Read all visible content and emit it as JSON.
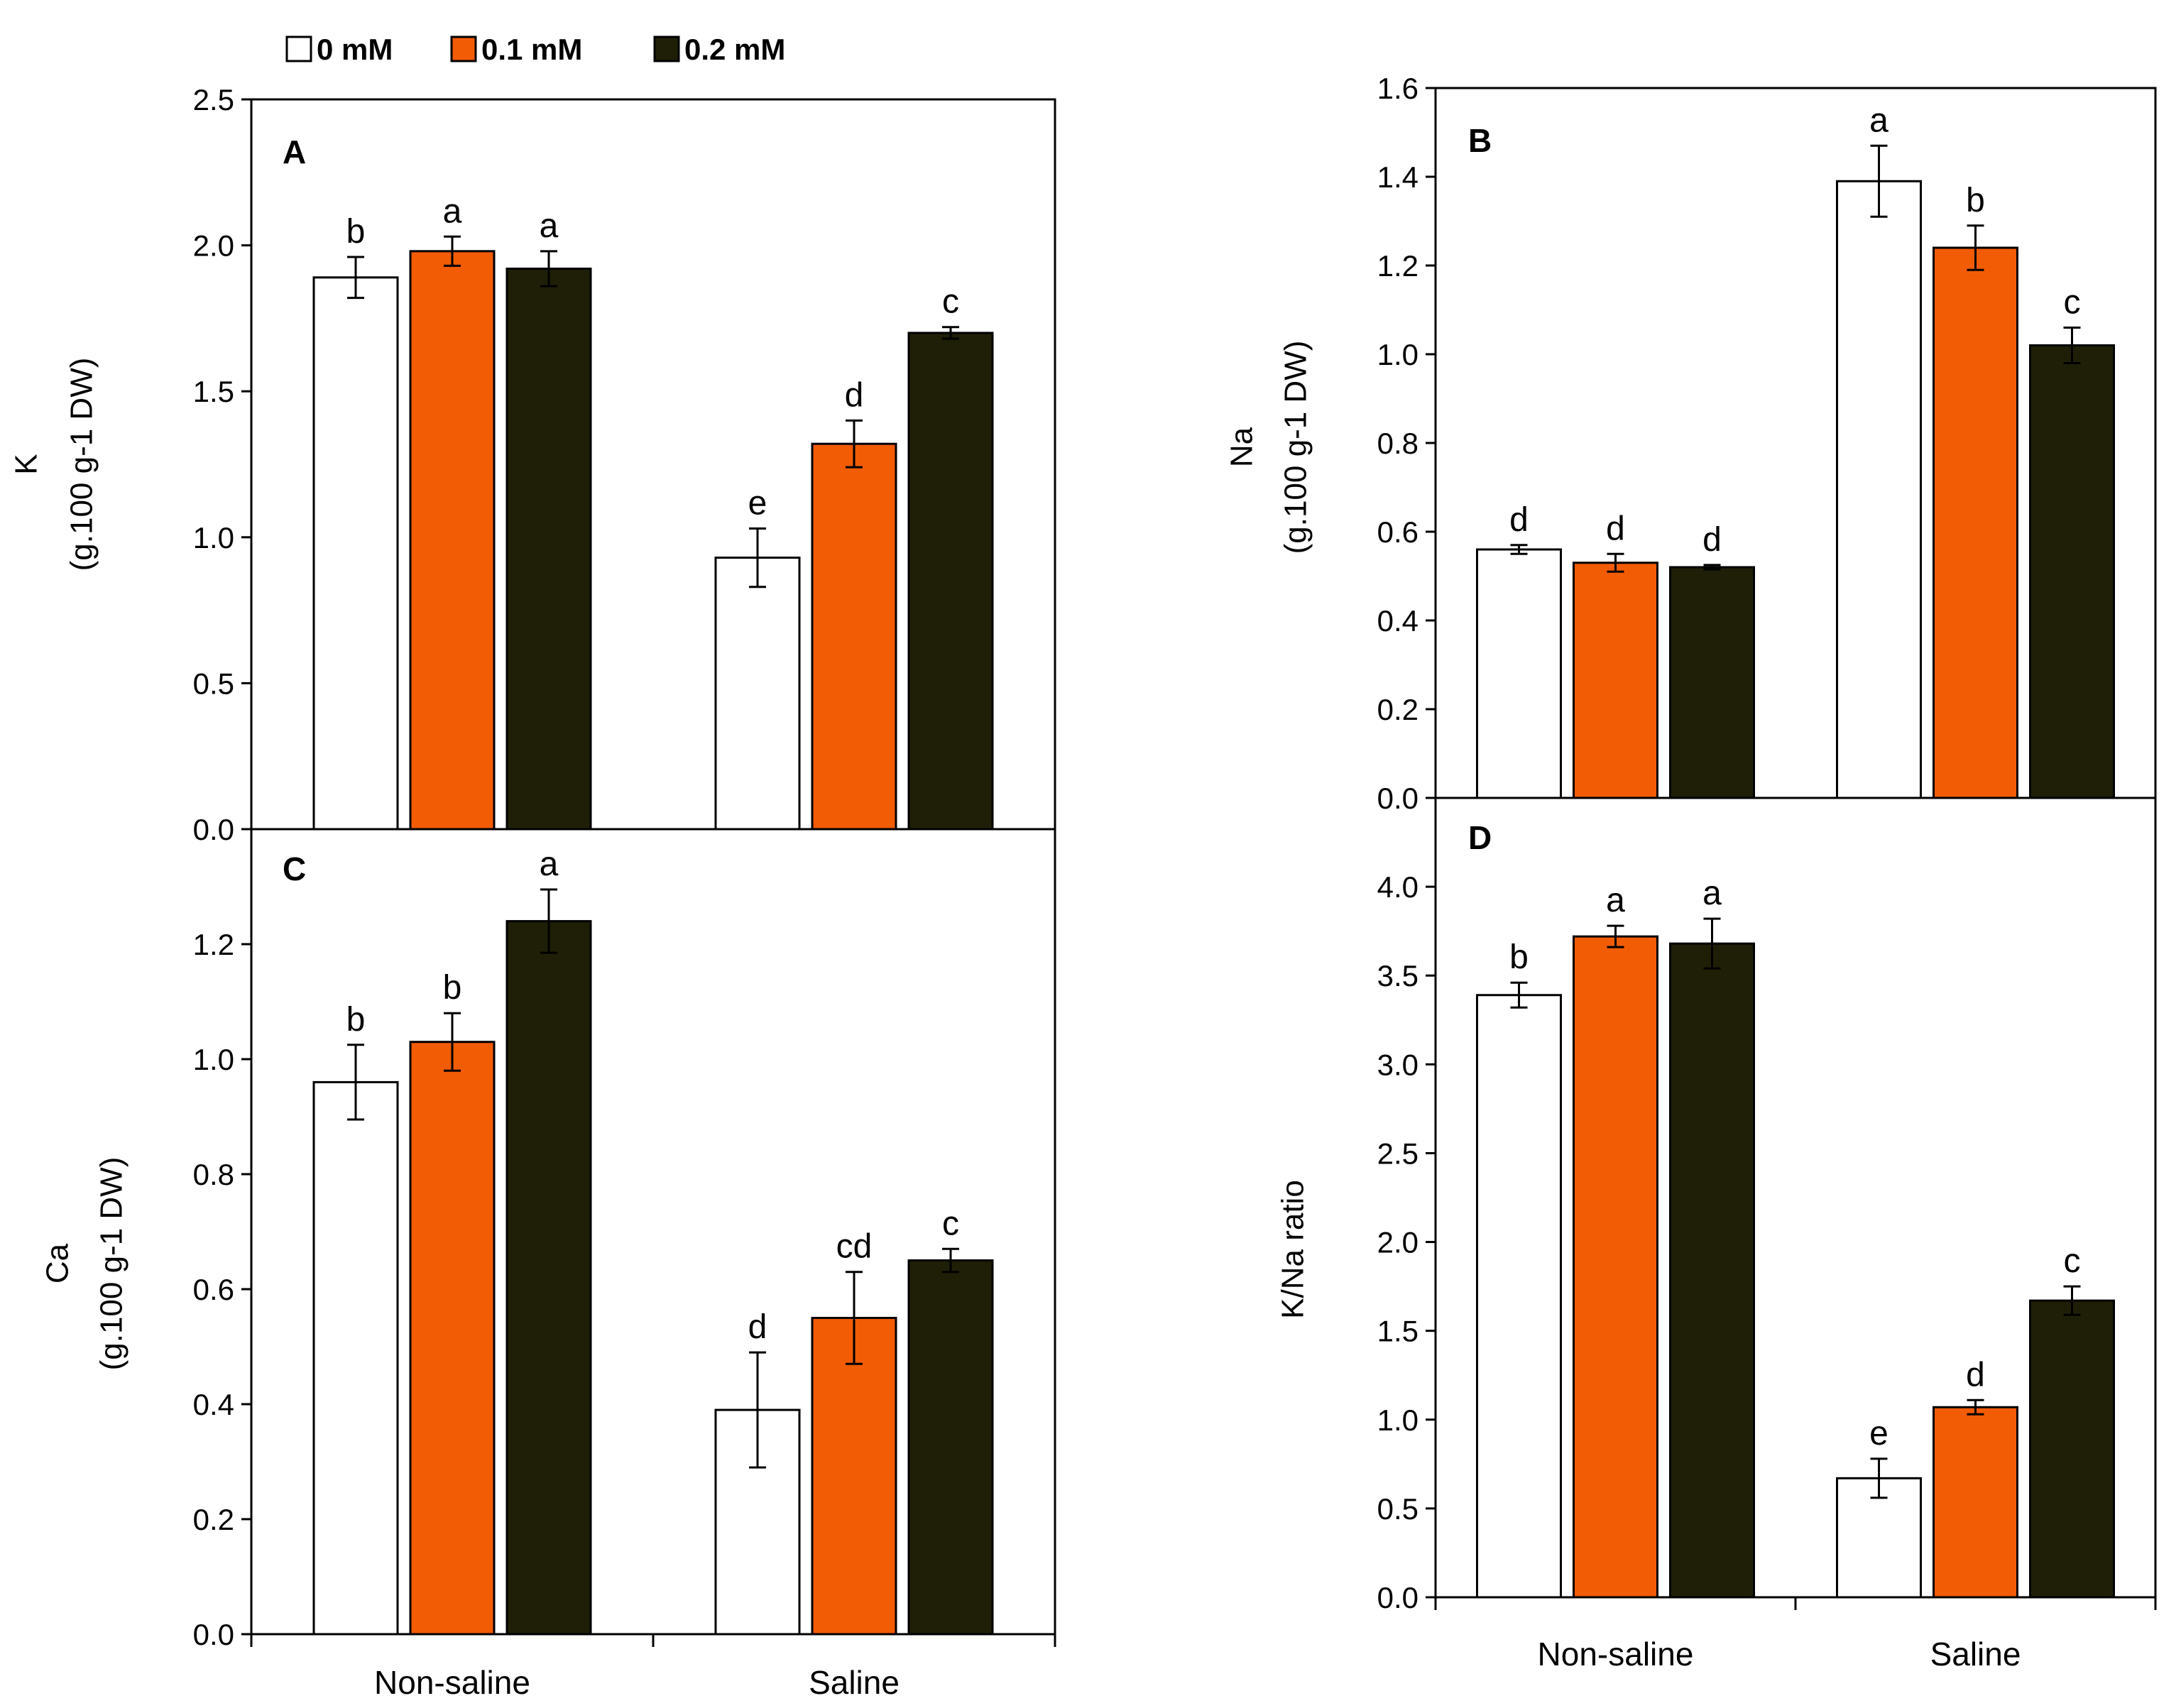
{
  "legend": {
    "items": [
      {
        "label": "0 mM",
        "color": "#ffffff"
      },
      {
        "label": "0.1 mM",
        "color": "#f25c05"
      },
      {
        "label": "0.2 mM",
        "color": "#1f1f08"
      }
    ]
  },
  "colors": {
    "series_0": "#ffffff",
    "series_1": "#f25c05",
    "series_2": "#1f1f08",
    "stroke": "#000000"
  },
  "chart_data": [
    {
      "type": "bar",
      "panel": "A",
      "ylabel_line1": "K",
      "ylabel_line2": "(g.100 g-1 DW)",
      "ylim": [
        0,
        2.5
      ],
      "yticks": [
        "0.0",
        "0.5",
        "1.0",
        "1.5",
        "2.0",
        "2.5"
      ],
      "categories": [
        "Non-saline",
        "Saline"
      ],
      "series": [
        {
          "name": "0 mM",
          "values": [
            1.89,
            0.93
          ],
          "errors": [
            0.07,
            0.1
          ],
          "letters": [
            "b",
            "e"
          ]
        },
        {
          "name": "0.1 mM",
          "values": [
            1.98,
            1.32
          ],
          "errors": [
            0.05,
            0.08
          ],
          "letters": [
            "a",
            "d"
          ]
        },
        {
          "name": "0.2 mM",
          "values": [
            1.92,
            1.7
          ],
          "errors": [
            0.06,
            0.02
          ],
          "letters": [
            "a",
            "c"
          ]
        }
      ]
    },
    {
      "type": "bar",
      "panel": "B",
      "ylabel_line1": "Na",
      "ylabel_line2": "(g.100 g-1 DW)",
      "ylim": [
        0,
        1.6
      ],
      "yticks": [
        "0.0",
        "0.2",
        "0.4",
        "0.6",
        "0.8",
        "1.0",
        "1.2",
        "1.4",
        "1.6"
      ],
      "categories": [
        "Non-saline",
        "Saline"
      ],
      "series": [
        {
          "name": "0 mM",
          "values": [
            0.56,
            1.39
          ],
          "errors": [
            0.01,
            0.08
          ],
          "letters": [
            "d",
            "a"
          ]
        },
        {
          "name": "0.1 mM",
          "values": [
            0.53,
            1.24
          ],
          "errors": [
            0.02,
            0.05
          ],
          "letters": [
            "d",
            "b"
          ]
        },
        {
          "name": "0.2 mM",
          "values": [
            0.52,
            1.02
          ],
          "errors": [
            0.005,
            0.04
          ],
          "letters": [
            "d",
            "c"
          ]
        }
      ]
    },
    {
      "type": "bar",
      "panel": "C",
      "ylabel_line1": "Ca",
      "ylabel_line2": "(g.100 g-1 DW)",
      "ylim": [
        0,
        1.4
      ],
      "yticks": [
        "0.0",
        "0.2",
        "0.4",
        "0.6",
        "0.8",
        "1.0",
        "1.2"
      ],
      "categories": [
        "Non-saline",
        "Saline"
      ],
      "series": [
        {
          "name": "0 mM",
          "values": [
            0.96,
            0.39
          ],
          "errors": [
            0.065,
            0.1
          ],
          "letters": [
            "b",
            "d"
          ]
        },
        {
          "name": "0.1 mM",
          "values": [
            1.03,
            0.55
          ],
          "errors": [
            0.05,
            0.08
          ],
          "letters": [
            "b",
            "cd"
          ]
        },
        {
          "name": "0.2 mM",
          "values": [
            1.24,
            0.65
          ],
          "errors": [
            0.055,
            0.02
          ],
          "letters": [
            "a",
            "c"
          ]
        }
      ]
    },
    {
      "type": "bar",
      "panel": "D",
      "ylabel_line1": "K/Na ratio",
      "ylabel_line2": "",
      "ylim": [
        0,
        4.5
      ],
      "yticks": [
        "0.0",
        "0.5",
        "1.0",
        "1.5",
        "2.0",
        "2.5",
        "3.0",
        "3.5",
        "4.0"
      ],
      "categories": [
        "Non-saline",
        "Saline"
      ],
      "series": [
        {
          "name": "0 mM",
          "values": [
            3.39,
            0.67
          ],
          "errors": [
            0.07,
            0.11
          ],
          "letters": [
            "b",
            "e"
          ]
        },
        {
          "name": "0.1 mM",
          "values": [
            3.72,
            1.07
          ],
          "errors": [
            0.06,
            0.04
          ],
          "letters": [
            "a",
            "d"
          ]
        },
        {
          "name": "0.2 mM",
          "values": [
            3.68,
            1.67
          ],
          "errors": [
            0.14,
            0.08
          ],
          "letters": [
            "a",
            "c"
          ]
        }
      ]
    }
  ]
}
